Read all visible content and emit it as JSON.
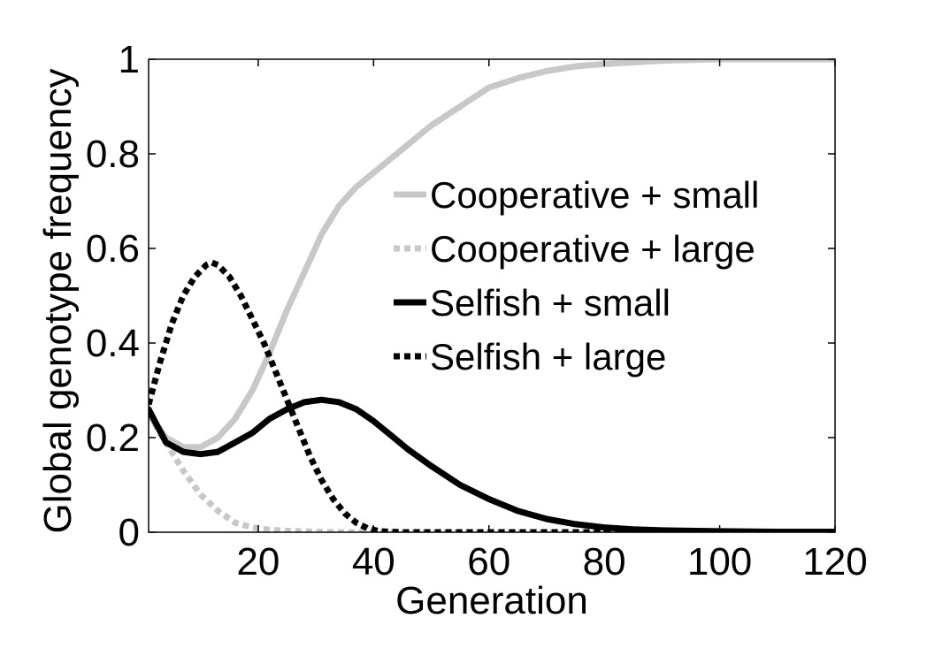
{
  "chart_data": {
    "type": "line",
    "title": "",
    "xlabel": "Generation",
    "ylabel": "Global genotype frequency",
    "xlim": [
      1,
      120
    ],
    "ylim": [
      0,
      1
    ],
    "xticks": [
      20,
      40,
      60,
      80,
      100,
      120
    ],
    "yticks": [
      0,
      0.2,
      0.4,
      0.6,
      0.8,
      1
    ],
    "xtick_labels": [
      "20",
      "40",
      "60",
      "80",
      "100",
      "120"
    ],
    "ytick_labels": [
      "0",
      "0.2",
      "0.4",
      "0.6",
      "0.8",
      "1"
    ],
    "grid": false,
    "legend_position": "right",
    "series": [
      {
        "name": "Cooperative + small",
        "color": "#c8c8c8",
        "style": "solid",
        "x": [
          1,
          4,
          7,
          10,
          13,
          16,
          19,
          22,
          25,
          28,
          31,
          34,
          37,
          40,
          43,
          46,
          50,
          55,
          60,
          65,
          70,
          75,
          80,
          90,
          100,
          110,
          120
        ],
        "y": [
          0.25,
          0.2,
          0.18,
          0.18,
          0.2,
          0.24,
          0.3,
          0.38,
          0.47,
          0.55,
          0.63,
          0.69,
          0.73,
          0.76,
          0.79,
          0.82,
          0.86,
          0.9,
          0.94,
          0.96,
          0.975,
          0.985,
          0.99,
          0.997,
          1.0,
          1.0,
          1.0
        ]
      },
      {
        "name": "Cooperative + large",
        "color": "#c8c8c8",
        "style": "dotted",
        "x": [
          1,
          4,
          7,
          10,
          13,
          16,
          19,
          22,
          25,
          30,
          35,
          40,
          50,
          60,
          80,
          100,
          120
        ],
        "y": [
          0.25,
          0.19,
          0.13,
          0.08,
          0.045,
          0.02,
          0.01,
          0.005,
          0.003,
          0.001,
          0,
          0,
          0,
          0,
          0,
          0,
          0
        ]
      },
      {
        "name": "Selfish + small",
        "color": "#000000",
        "style": "solid",
        "x": [
          1,
          4,
          7,
          10,
          13,
          16,
          19,
          22,
          25,
          28,
          31,
          34,
          37,
          40,
          43,
          46,
          50,
          55,
          60,
          65,
          70,
          75,
          80,
          85,
          90,
          100,
          110,
          120
        ],
        "y": [
          0.26,
          0.19,
          0.17,
          0.165,
          0.17,
          0.19,
          0.21,
          0.24,
          0.26,
          0.275,
          0.28,
          0.275,
          0.26,
          0.235,
          0.205,
          0.175,
          0.14,
          0.1,
          0.07,
          0.045,
          0.028,
          0.017,
          0.01,
          0.006,
          0.004,
          0.002,
          0.001,
          0.001
        ]
      },
      {
        "name": "Selfish + large",
        "color": "#000000",
        "style": "dotted",
        "x": [
          1,
          3,
          5,
          7,
          9,
          11,
          12,
          13,
          15,
          17,
          19,
          21,
          23,
          25,
          27,
          29,
          31,
          33,
          35,
          37,
          39,
          41,
          45,
          50,
          60,
          80,
          100,
          120
        ],
        "y": [
          0.27,
          0.36,
          0.44,
          0.5,
          0.54,
          0.565,
          0.57,
          0.565,
          0.54,
          0.5,
          0.45,
          0.4,
          0.34,
          0.28,
          0.22,
          0.16,
          0.11,
          0.07,
          0.04,
          0.02,
          0.008,
          0.002,
          0,
          0,
          0,
          0,
          0,
          0
        ]
      }
    ]
  }
}
